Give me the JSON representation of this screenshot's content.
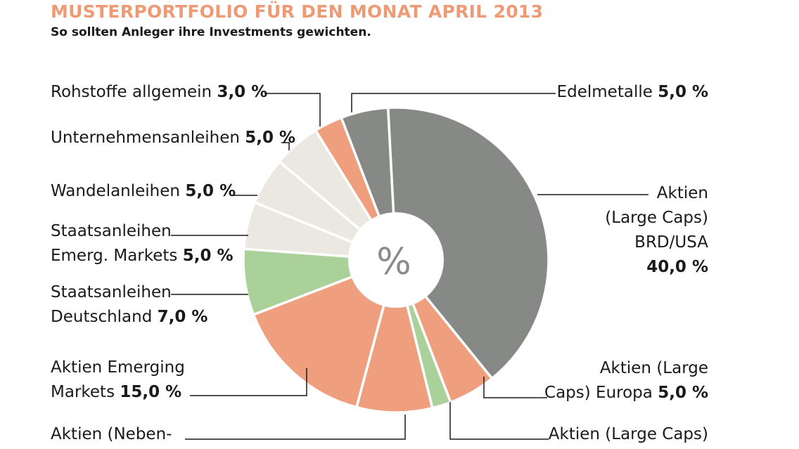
{
  "chart_data": {
    "type": "pie",
    "variant": "donut",
    "title": "MUSTERPORTFOLIO FÜR DEN MONAT APRIL 2013",
    "subtitle": "So sollten Anleger ihre Investments gewichten.",
    "center_label": "%",
    "slices": [
      {
        "name": [
          "Aktien",
          "(Large Caps)",
          "BRD/USA"
        ],
        "value_label": "40,0 %",
        "value": 40.0,
        "color": "#878987"
      },
      {
        "name": [
          "Aktien (Large",
          "Caps) Europa"
        ],
        "value_label": "5,0 %",
        "value": 5.0,
        "color": "#f09f7e"
      },
      {
        "name": [
          "Aktien (Large Caps)"
        ],
        "value_label": "",
        "value": 2.0,
        "color": "#abd19b"
      },
      {
        "name": [
          "Aktien (Neben-"
        ],
        "value_label": "",
        "value": 8.0,
        "color": "#f09f7e"
      },
      {
        "name": [
          "Aktien Emerging",
          "Markets"
        ],
        "value_label": "15,0 %",
        "value": 15.0,
        "color": "#f09f7e"
      },
      {
        "name": [
          "Staatsanleihen",
          "Deutschland"
        ],
        "value_label": "7,0 %",
        "value": 7.0,
        "color": "#abd19b"
      },
      {
        "name": [
          "Staatsanleihen",
          "Emerg. Markets"
        ],
        "value_label": "5,0 %",
        "value": 5.0,
        "color": "#ebe8e1"
      },
      {
        "name": [
          "Wandelanleihen"
        ],
        "value_label": "5,0 %",
        "value": 5.0,
        "color": "#ebe8e1"
      },
      {
        "name": [
          "Unternehmensanleihen"
        ],
        "value_label": "5,0 %",
        "value": 5.0,
        "color": "#ebe8e1"
      },
      {
        "name": [
          "Rohstoffe allgemein"
        ],
        "value_label": "3,0 %",
        "value": 3.0,
        "color": "#f09f7e"
      },
      {
        "name": [
          "Edelmetalle"
        ],
        "value_label": "5,0 %",
        "value": 5.0,
        "color": "#878987"
      }
    ]
  }
}
